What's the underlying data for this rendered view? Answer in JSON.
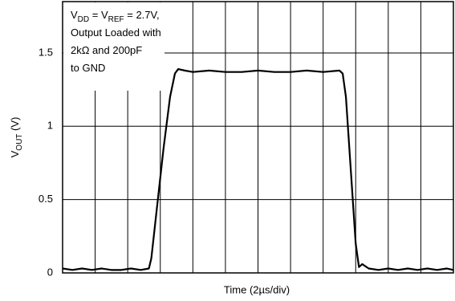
{
  "chart_data": {
    "type": "line",
    "xlabel": "Time (2µs/div)",
    "ylabel": [
      "V",
      "OUT",
      " (V)"
    ],
    "annotation": [
      [
        "V",
        "DD",
        " = V",
        "REF",
        " = 2.7V,"
      ],
      [
        "Output Loaded with"
      ],
      [
        "2kΩ and 200pF"
      ],
      [
        "to GND"
      ]
    ],
    "x": [
      0,
      0.6,
      1.2,
      1.8,
      2.4,
      3.0,
      3.6,
      4.2,
      4.8,
      5.3,
      5.45,
      5.8,
      6.2,
      6.6,
      6.9,
      7.1,
      7.5,
      8,
      9,
      10,
      11,
      12,
      13,
      14,
      15,
      16,
      17,
      17.2,
      17.4,
      17.7,
      18.0,
      18.2,
      18.4,
      18.8,
      19.4,
      20,
      20.6,
      21.2,
      21.8,
      22.4,
      23,
      23.6,
      24
    ],
    "series": [
      {
        "color": "#000000",
        "values": [
          0.03,
          0.02,
          0.03,
          0.02,
          0.03,
          0.02,
          0.02,
          0.03,
          0.02,
          0.03,
          0.1,
          0.45,
          0.85,
          1.2,
          1.36,
          1.39,
          1.38,
          1.37,
          1.38,
          1.37,
          1.37,
          1.38,
          1.37,
          1.37,
          1.38,
          1.37,
          1.38,
          1.36,
          1.2,
          0.7,
          0.2,
          0.04,
          0.06,
          0.03,
          0.02,
          0.03,
          0.02,
          0.03,
          0.02,
          0.03,
          0.02,
          0.03,
          0.02
        ]
      }
    ],
    "xlim": [
      0,
      24
    ],
    "xticks": [
      0,
      2,
      4,
      6,
      8,
      10,
      12,
      14,
      16,
      18,
      20,
      22,
      24
    ],
    "ylim": [
      0,
      1.85
    ],
    "yticks": [
      0,
      0.5,
      1,
      1.5
    ],
    "grid": true
  }
}
